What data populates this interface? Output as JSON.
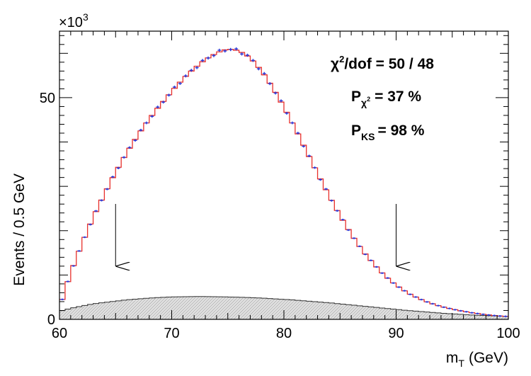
{
  "chart_data": {
    "type": "line",
    "xlabel": "m",
    "xlabel_sub": "T",
    "xlabel_unit": "(GeV)",
    "ylabel": "Events / 0.5 GeV",
    "y_multiplier": "×10",
    "y_multiplier_exp": "3",
    "xlim": [
      60,
      100
    ],
    "ylim": [
      0,
      65
    ],
    "xticks": [
      60,
      70,
      80,
      90,
      100
    ],
    "yticks_labeled": [
      0,
      50
    ],
    "bin_width": 0.5,
    "annotations": {
      "chi2_label": "χ",
      "chi2_rest": "/dof = 50 / 48",
      "pchi2_label": "P",
      "pchi2_sub": "χ",
      "pchi2_value": "= 37 %",
      "pks_label": "P",
      "pks_sub": "KS",
      "pks_value": "= 98 %"
    },
    "arrows_x": [
      65,
      90
    ],
    "series": [
      {
        "style": "red-histogram",
        "color": "#e8302c",
        "x": [
          60,
          61,
          62,
          63,
          64,
          65,
          66,
          67,
          68,
          69,
          70,
          71,
          72,
          73,
          74,
          75,
          76,
          77,
          78,
          79,
          80,
          81,
          82,
          83,
          84,
          85,
          86,
          87,
          88,
          89,
          90,
          91,
          92,
          93,
          94,
          95,
          96,
          97,
          98,
          99,
          100
        ],
        "values": [
          2.5,
          10.5,
          17,
          23,
          28.2,
          33.2,
          37.6,
          41.6,
          45.2,
          48.4,
          51.4,
          54.2,
          56.6,
          58.6,
          60.1,
          61.0,
          60.6,
          59.0,
          56.1,
          52.3,
          47.9,
          43.1,
          38.0,
          32.9,
          28.0,
          23.4,
          19.2,
          15.5,
          12.5,
          9.8,
          7.7,
          6.0,
          4.7,
          3.7,
          2.9,
          2.3,
          1.8,
          1.4,
          1.05,
          0.8,
          0.65
        ]
      },
      {
        "style": "blue-points",
        "color": "#2b37d6"
      },
      {
        "style": "hatched-background",
        "color": "#555555",
        "x": [
          60,
          61,
          62,
          63,
          64,
          65,
          66,
          67,
          68,
          69,
          70,
          71,
          72,
          73,
          74,
          75,
          76,
          77,
          78,
          79,
          80,
          81,
          82,
          83,
          84,
          85,
          86,
          87,
          88,
          89,
          90,
          91,
          92,
          93,
          94,
          95,
          96,
          97,
          98,
          99,
          100
        ],
        "values": [
          1.8,
          2.5,
          3.0,
          3.5,
          3.8,
          4.1,
          4.4,
          4.6,
          4.8,
          4.95,
          5.05,
          5.1,
          5.15,
          5.15,
          5.1,
          5.05,
          5.0,
          4.9,
          4.8,
          4.65,
          4.5,
          4.35,
          4.15,
          3.95,
          3.75,
          3.5,
          3.25,
          3.0,
          2.75,
          2.5,
          2.25,
          2.0,
          1.8,
          1.6,
          1.4,
          1.25,
          1.1,
          0.95,
          0.85,
          0.75,
          0.65
        ]
      }
    ],
    "grid": false,
    "legend": "none"
  }
}
